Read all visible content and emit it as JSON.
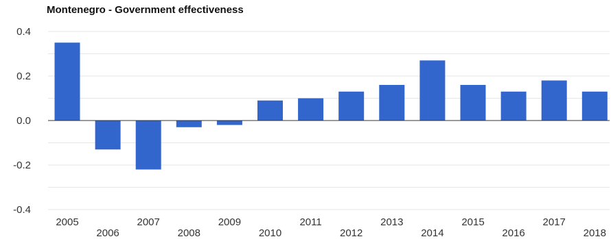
{
  "chart_data": {
    "type": "bar",
    "title": "Montenegro - Government effectiveness",
    "xlabel": "",
    "ylabel": "",
    "categories": [
      "2005",
      "2006",
      "2007",
      "2008",
      "2009",
      "2010",
      "2011",
      "2012",
      "2013",
      "2014",
      "2015",
      "2016",
      "2017",
      "2018"
    ],
    "values": [
      0.35,
      -0.13,
      -0.22,
      -0.03,
      -0.02,
      0.09,
      0.1,
      0.13,
      0.16,
      0.27,
      0.16,
      0.13,
      0.18,
      0.13
    ],
    "ylim": [
      -0.4,
      0.4
    ],
    "yticks": [
      "0.4",
      "0.2",
      "0.0",
      "-0.2",
      "-0.4"
    ],
    "grid": true,
    "legend": "none",
    "bar_color": "#3366cc",
    "grid_color": "#e6e6e6",
    "zero_line_color": "#333333"
  }
}
